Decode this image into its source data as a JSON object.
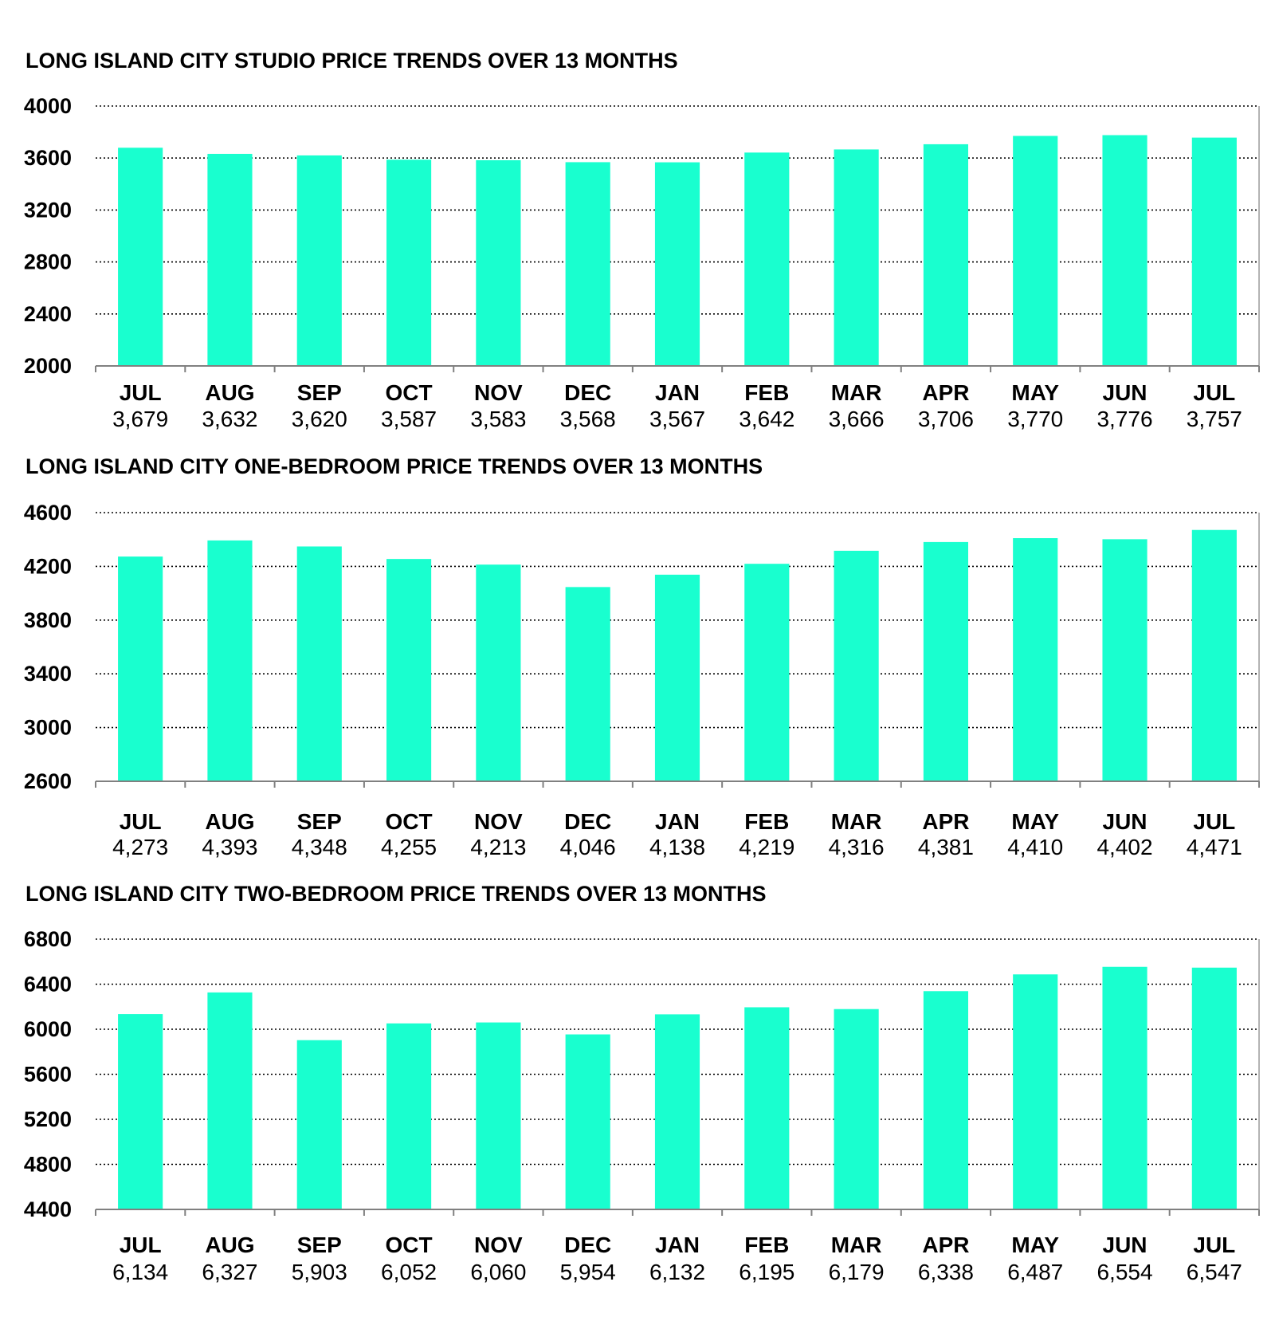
{
  "chart_data": [
    {
      "type": "bar",
      "title": "LONG ISLAND CITY STUDIO PRICE TRENDS OVER 13 MONTHS",
      "categories": [
        "JUL",
        "AUG",
        "SEP",
        "OCT",
        "NOV",
        "DEC",
        "JAN",
        "FEB",
        "MAR",
        "APR",
        "MAY",
        "JUN",
        "JUL"
      ],
      "values": [
        3679,
        3632,
        3620,
        3587,
        3583,
        3568,
        3567,
        3642,
        3666,
        3706,
        3770,
        3776,
        3757
      ],
      "value_labels": [
        "3,679",
        "3,632",
        "3,620",
        "3,587",
        "3,583",
        "3,568",
        "3,567",
        "3,642",
        "3,666",
        "3,706",
        "3,770",
        "3,776",
        "3,757"
      ],
      "yticks": [
        "2000",
        "2400",
        "2800",
        "3200",
        "3600",
        "4000"
      ],
      "ylim": [
        2000,
        4000
      ],
      "grid": true,
      "bar_color": "#19FFCF"
    },
    {
      "type": "bar",
      "title": "LONG ISLAND CITY ONE-BEDROOM PRICE TRENDS OVER 13 MONTHS",
      "categories": [
        "JUL",
        "AUG",
        "SEP",
        "OCT",
        "NOV",
        "DEC",
        "JAN",
        "FEB",
        "MAR",
        "APR",
        "MAY",
        "JUN",
        "JUL"
      ],
      "values": [
        4273,
        4393,
        4348,
        4255,
        4213,
        4046,
        4138,
        4219,
        4316,
        4381,
        4410,
        4402,
        4471
      ],
      "value_labels": [
        "4,273",
        "4,393",
        "4,348",
        "4,255",
        "4,213",
        "4,046",
        "4,138",
        "4,219",
        "4,316",
        "4,381",
        "4,410",
        "4,402",
        "4,471"
      ],
      "yticks": [
        "2600",
        "3000",
        "3400",
        "3800",
        "4200",
        "4600"
      ],
      "ylim": [
        2600,
        4600
      ],
      "grid": true,
      "bar_color": "#19FFCF"
    },
    {
      "type": "bar",
      "title": "LONG ISLAND CITY TWO-BEDROOM PRICE TRENDS OVER 13 MONTHS",
      "categories": [
        "JUL",
        "AUG",
        "SEP",
        "OCT",
        "NOV",
        "DEC",
        "JAN",
        "FEB",
        "MAR",
        "APR",
        "MAY",
        "JUN",
        "JUL"
      ],
      "values": [
        6134,
        6327,
        5903,
        6052,
        6060,
        5954,
        6132,
        6195,
        6179,
        6338,
        6487,
        6554,
        6547
      ],
      "value_labels": [
        "6,134",
        "6,327",
        "5,903",
        "6,052",
        "6,060",
        "5,954",
        "6,132",
        "6,195",
        "6,179",
        "6,338",
        "6,487",
        "6,554",
        "6,547"
      ],
      "yticks": [
        "4400",
        "4800",
        "5200",
        "5600",
        "6000",
        "6400",
        "6800"
      ],
      "ylim": [
        4400,
        6800
      ],
      "grid": true,
      "bar_color": "#19FFCF"
    }
  ]
}
